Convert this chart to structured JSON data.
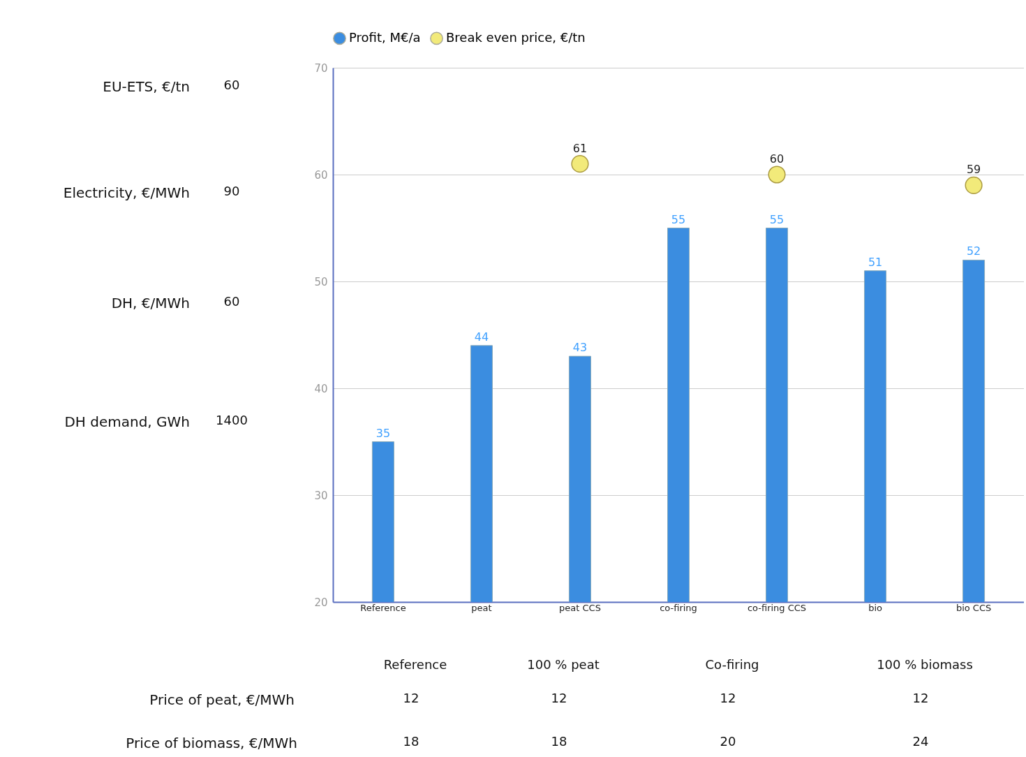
{
  "chart_data": {
    "type": "bar",
    "categories": [
      "Reference",
      "peat",
      "peat CCS",
      "co-firing",
      "co-firing CCS",
      "bio",
      "bio CCS"
    ],
    "series": [
      {
        "name": "Profit, M€/a",
        "color": "#3b8de0",
        "values": [
          35,
          44,
          43,
          55,
          55,
          51,
          52
        ]
      },
      {
        "name": "Break even price, €/tn",
        "type": "scatter",
        "color": "#f2ea7a",
        "values": [
          null,
          null,
          61,
          null,
          60,
          null,
          59
        ]
      }
    ],
    "ylim": [
      20,
      70
    ],
    "yticks": [
      20,
      30,
      40,
      50,
      60,
      70
    ],
    "grid": "y",
    "legend": "top",
    "marker": "circle",
    "data_labels": true,
    "annotations": [
      "EU-ETS, €/tn",
      "60",
      "Electricity, €/MWh",
      "90",
      "DH, €/MWh",
      "60",
      "DH demand, GWh",
      "1400",
      "Reference",
      "100 % peat",
      "Co-firing",
      "100 % biomass",
      "Price of peat, €/MWh",
      "12",
      "12",
      "12",
      "12",
      "Price of biomass, €/MWh",
      "18",
      "18",
      "20",
      "24"
    ]
  }
}
